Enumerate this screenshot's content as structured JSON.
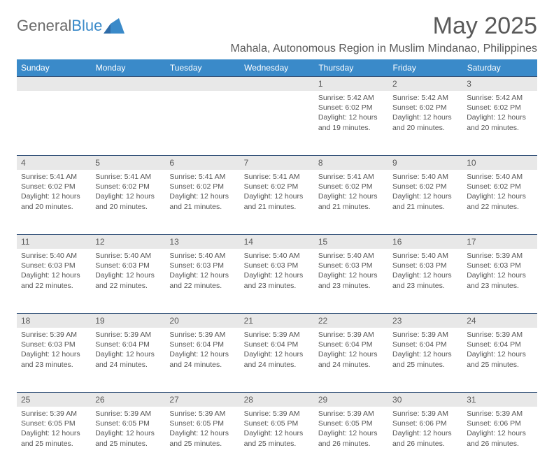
{
  "brand": {
    "part1": "General",
    "part2": "Blue"
  },
  "title": {
    "month": "May 2025"
  },
  "location": "Mahala, Autonomous Region in Muslim Mindanao, Philippines",
  "colors": {
    "header_bg": "#3a8ac9",
    "header_fg": "#ffffff",
    "daynum_bg": "#e8e8e8",
    "rule": "#35537a",
    "text": "#555555"
  },
  "weekdays": [
    "Sunday",
    "Monday",
    "Tuesday",
    "Wednesday",
    "Thursday",
    "Friday",
    "Saturday"
  ],
  "labels": {
    "sunrise": "Sunrise:",
    "sunset": "Sunset:",
    "daylight": "Daylight:"
  },
  "weeks": [
    [
      null,
      null,
      null,
      null,
      {
        "n": "1",
        "sr": "5:42 AM",
        "ss": "6:02 PM",
        "dl": "12 hours and 19 minutes."
      },
      {
        "n": "2",
        "sr": "5:42 AM",
        "ss": "6:02 PM",
        "dl": "12 hours and 20 minutes."
      },
      {
        "n": "3",
        "sr": "5:42 AM",
        "ss": "6:02 PM",
        "dl": "12 hours and 20 minutes."
      }
    ],
    [
      {
        "n": "4",
        "sr": "5:41 AM",
        "ss": "6:02 PM",
        "dl": "12 hours and 20 minutes."
      },
      {
        "n": "5",
        "sr": "5:41 AM",
        "ss": "6:02 PM",
        "dl": "12 hours and 20 minutes."
      },
      {
        "n": "6",
        "sr": "5:41 AM",
        "ss": "6:02 PM",
        "dl": "12 hours and 21 minutes."
      },
      {
        "n": "7",
        "sr": "5:41 AM",
        "ss": "6:02 PM",
        "dl": "12 hours and 21 minutes."
      },
      {
        "n": "8",
        "sr": "5:41 AM",
        "ss": "6:02 PM",
        "dl": "12 hours and 21 minutes."
      },
      {
        "n": "9",
        "sr": "5:40 AM",
        "ss": "6:02 PM",
        "dl": "12 hours and 21 minutes."
      },
      {
        "n": "10",
        "sr": "5:40 AM",
        "ss": "6:02 PM",
        "dl": "12 hours and 22 minutes."
      }
    ],
    [
      {
        "n": "11",
        "sr": "5:40 AM",
        "ss": "6:03 PM",
        "dl": "12 hours and 22 minutes."
      },
      {
        "n": "12",
        "sr": "5:40 AM",
        "ss": "6:03 PM",
        "dl": "12 hours and 22 minutes."
      },
      {
        "n": "13",
        "sr": "5:40 AM",
        "ss": "6:03 PM",
        "dl": "12 hours and 22 minutes."
      },
      {
        "n": "14",
        "sr": "5:40 AM",
        "ss": "6:03 PM",
        "dl": "12 hours and 23 minutes."
      },
      {
        "n": "15",
        "sr": "5:40 AM",
        "ss": "6:03 PM",
        "dl": "12 hours and 23 minutes."
      },
      {
        "n": "16",
        "sr": "5:40 AM",
        "ss": "6:03 PM",
        "dl": "12 hours and 23 minutes."
      },
      {
        "n": "17",
        "sr": "5:39 AM",
        "ss": "6:03 PM",
        "dl": "12 hours and 23 minutes."
      }
    ],
    [
      {
        "n": "18",
        "sr": "5:39 AM",
        "ss": "6:03 PM",
        "dl": "12 hours and 23 minutes."
      },
      {
        "n": "19",
        "sr": "5:39 AM",
        "ss": "6:04 PM",
        "dl": "12 hours and 24 minutes."
      },
      {
        "n": "20",
        "sr": "5:39 AM",
        "ss": "6:04 PM",
        "dl": "12 hours and 24 minutes."
      },
      {
        "n": "21",
        "sr": "5:39 AM",
        "ss": "6:04 PM",
        "dl": "12 hours and 24 minutes."
      },
      {
        "n": "22",
        "sr": "5:39 AM",
        "ss": "6:04 PM",
        "dl": "12 hours and 24 minutes."
      },
      {
        "n": "23",
        "sr": "5:39 AM",
        "ss": "6:04 PM",
        "dl": "12 hours and 25 minutes."
      },
      {
        "n": "24",
        "sr": "5:39 AM",
        "ss": "6:04 PM",
        "dl": "12 hours and 25 minutes."
      }
    ],
    [
      {
        "n": "25",
        "sr": "5:39 AM",
        "ss": "6:05 PM",
        "dl": "12 hours and 25 minutes."
      },
      {
        "n": "26",
        "sr": "5:39 AM",
        "ss": "6:05 PM",
        "dl": "12 hours and 25 minutes."
      },
      {
        "n": "27",
        "sr": "5:39 AM",
        "ss": "6:05 PM",
        "dl": "12 hours and 25 minutes."
      },
      {
        "n": "28",
        "sr": "5:39 AM",
        "ss": "6:05 PM",
        "dl": "12 hours and 25 minutes."
      },
      {
        "n": "29",
        "sr": "5:39 AM",
        "ss": "6:05 PM",
        "dl": "12 hours and 26 minutes."
      },
      {
        "n": "30",
        "sr": "5:39 AM",
        "ss": "6:06 PM",
        "dl": "12 hours and 26 minutes."
      },
      {
        "n": "31",
        "sr": "5:39 AM",
        "ss": "6:06 PM",
        "dl": "12 hours and 26 minutes."
      }
    ]
  ]
}
